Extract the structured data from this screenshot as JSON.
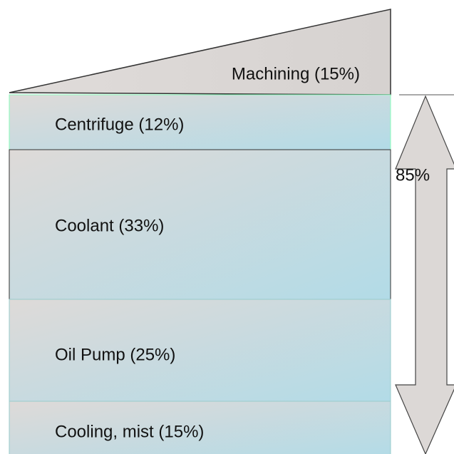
{
  "top": {
    "label": "Machining (15%)"
  },
  "layers": [
    {
      "label": "Centrifuge (12%)"
    },
    {
      "label": "Coolant (33%)"
    },
    {
      "label": "Oil Pump (25%)"
    },
    {
      "label": "Cooling, mist (15%)"
    }
  ],
  "total_arrow": {
    "label": "85%"
  }
}
